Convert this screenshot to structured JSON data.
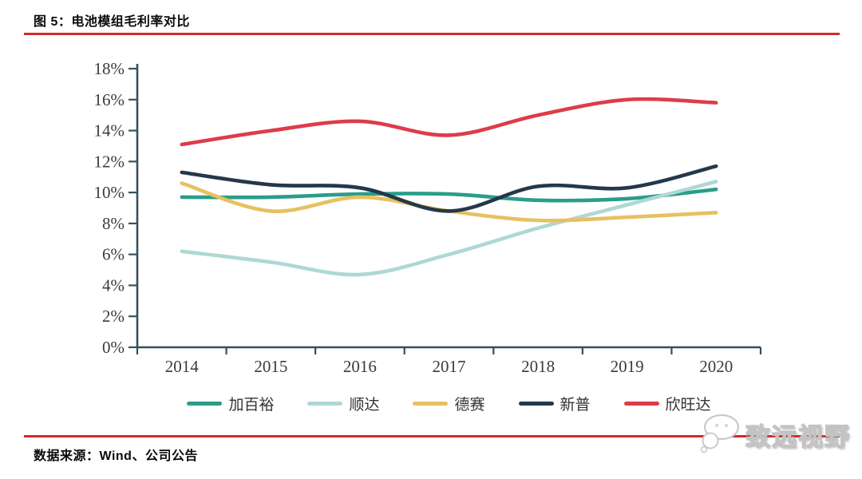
{
  "figure": {
    "title": "图 5：电池模组毛利率对比",
    "source": "数据来源：Wind、公司公告",
    "watermark": "致远视野",
    "rule_color": "#d22a28"
  },
  "chart_data": {
    "type": "line",
    "title": "电池模组毛利率对比",
    "categories": [
      "2014",
      "2015",
      "2016",
      "2017",
      "2018",
      "2019",
      "2020"
    ],
    "series": [
      {
        "name": "加百裕",
        "color": "#2a9d8a",
        "values": [
          9.7,
          9.7,
          9.9,
          9.9,
          9.5,
          9.6,
          10.2
        ]
      },
      {
        "name": "顺达",
        "color": "#aed8d4",
        "values": [
          6.2,
          5.5,
          4.7,
          6.0,
          7.7,
          9.2,
          10.7
        ]
      },
      {
        "name": "德赛",
        "color": "#e7c160",
        "values": [
          10.6,
          8.8,
          9.7,
          8.8,
          8.2,
          8.4,
          8.7
        ]
      },
      {
        "name": "新普",
        "color": "#24384a",
        "values": [
          11.3,
          10.5,
          10.3,
          8.8,
          10.4,
          10.3,
          11.7
        ]
      },
      {
        "name": "欣旺达",
        "color": "#dd3c4b",
        "values": [
          13.1,
          14.0,
          14.6,
          13.7,
          15.0,
          16.0,
          15.8
        ]
      }
    ],
    "ylim": [
      0,
      18
    ],
    "ytick_step": 2,
    "ytick_labels": [
      "0%",
      "2%",
      "4%",
      "6%",
      "8%",
      "10%",
      "12%",
      "14%",
      "16%",
      "18%"
    ],
    "unit": "%",
    "grid": false,
    "legend_position": "bottom",
    "axis_color": "#35505f",
    "tick_label_color": "#3b3b3b"
  }
}
